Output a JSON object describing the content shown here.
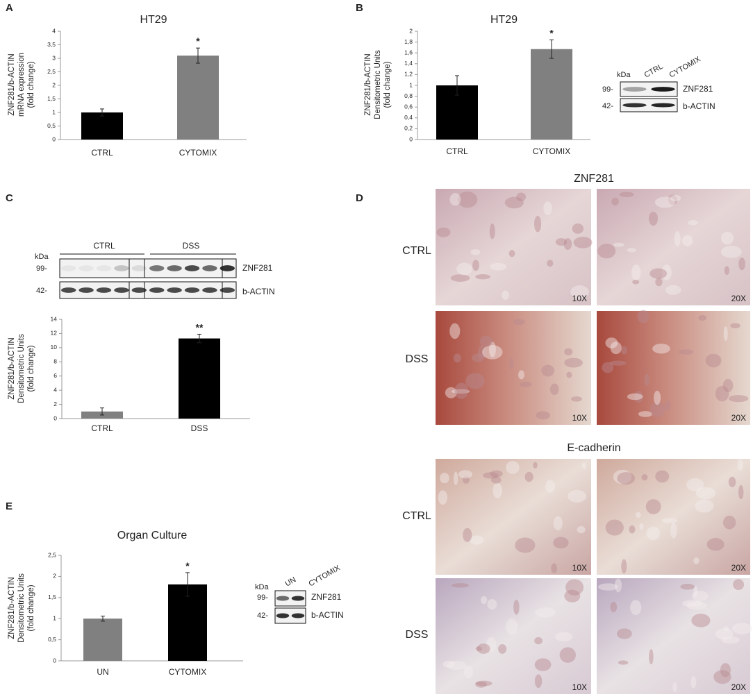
{
  "panel_labels": [
    "A",
    "B",
    "C",
    "D",
    "E"
  ],
  "chart_data": [
    {
      "type": "bar",
      "title": "HT29",
      "ylabel": [
        "ZNF281/b-ACTIN",
        "mRNA expression",
        "(fold change)"
      ],
      "categories": [
        "CTRL",
        "CYTOMIX"
      ],
      "values": [
        1,
        3.1
      ],
      "errors": [
        0.13,
        0.28
      ],
      "colors": [
        "#000000",
        "#808080"
      ],
      "significance": [
        null,
        "*"
      ],
      "ylim": [
        0,
        4
      ],
      "yticks": [
        0,
        {
          "value": 0.5,
          "label": "0,5"
        },
        1,
        {
          "value": 1.5,
          "label": "1,5"
        },
        2,
        {
          "value": 2.5,
          "label": "2,5"
        },
        3,
        {
          "value": 3.5,
          "label": "3,5"
        },
        4
      ]
    },
    {
      "type": "bar",
      "title": "HT29",
      "ylabel": [
        "ZNF281/b-ACTIN",
        "Densitometric Units",
        "(fold change)"
      ],
      "categories": [
        "CTRL",
        "CYTOMIX"
      ],
      "values": [
        1,
        1.67
      ],
      "errors": [
        0.18,
        0.17
      ],
      "colors": [
        "#000000",
        "#808080"
      ],
      "significance": [
        null,
        "*"
      ],
      "ylim": [
        0,
        2
      ],
      "yticks": [
        0,
        {
          "value": 0.2,
          "label": "0,2"
        },
        {
          "value": 0.4,
          "label": "0,4"
        },
        {
          "value": 0.6,
          "label": "0,6"
        },
        {
          "value": 0.8,
          "label": "0,8"
        },
        1,
        {
          "value": 1.2,
          "label": "1,2"
        },
        {
          "value": 1.4,
          "label": "1,4"
        },
        {
          "value": 1.6,
          "label": "1,6"
        },
        {
          "value": 1.8,
          "label": "1,8"
        },
        2
      ]
    },
    {
      "type": "bar",
      "ylabel": [
        "ZNF281/b-ACTIN",
        "Densitometric Units",
        "(fold change)"
      ],
      "categories": [
        "CTRL",
        "DSS"
      ],
      "values": [
        1,
        11.3
      ],
      "errors": [
        0.5,
        0.6
      ],
      "colors": [
        "#808080",
        "#000000"
      ],
      "significance": [
        null,
        "**"
      ],
      "ylim": [
        0,
        14
      ],
      "yticks": [
        0,
        2,
        4,
        6,
        8,
        10,
        12,
        14
      ]
    },
    {
      "type": "bar",
      "title": "Organ Culture",
      "ylabel": [
        "ZNF281/b-ACTIN",
        "Densitometric Units",
        "(fold change)"
      ],
      "categories": [
        "UN",
        "CYTOMIX"
      ],
      "values": [
        1,
        1.81
      ],
      "errors": [
        0.06,
        0.28
      ],
      "colors": [
        "#808080",
        "#000000"
      ],
      "significance": [
        null,
        "*"
      ],
      "ylim": [
        0,
        2.5
      ],
      "yticks": [
        0,
        {
          "value": 0.5,
          "label": "0,5"
        },
        1,
        {
          "value": 1.5,
          "label": "1,5"
        },
        2,
        {
          "value": 2.5,
          "label": "2,5"
        }
      ]
    }
  ],
  "blots": [
    {
      "kda": "kDa",
      "lanes": [
        "CTRL",
        "CYTOMIX"
      ],
      "markers": [
        "99-",
        "42-"
      ],
      "bands": [
        "ZNF281",
        "b-ACTIN"
      ]
    },
    {
      "kda": "kDa",
      "lanes": [
        "CTRL",
        "DSS"
      ],
      "markers": [
        "99-",
        "42-"
      ],
      "bands": [
        "ZNF281",
        "b-ACTIN"
      ]
    },
    {
      "kda": "kDa",
      "lanes": [
        "UN",
        "CYTOMIX"
      ],
      "markers": [
        "99-",
        "42-"
      ],
      "bands": [
        "ZNF281",
        "b-ACTIN"
      ]
    }
  ],
  "histology": {
    "sections": [
      "ZNF281",
      "E-cadherin"
    ],
    "rows": [
      "CTRL",
      "DSS"
    ],
    "magnifications": [
      "10X",
      "20X"
    ]
  }
}
